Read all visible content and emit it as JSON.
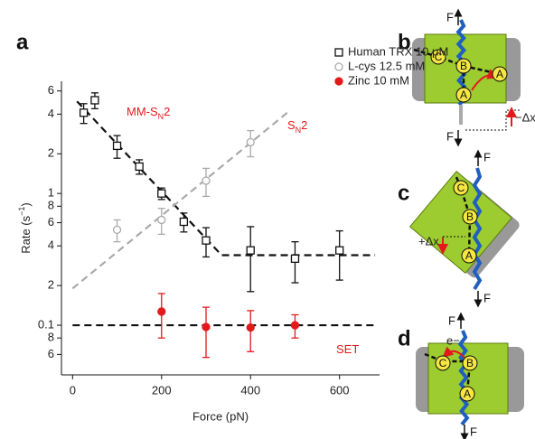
{
  "panel_labels": [
    "a",
    "b",
    "c",
    "d"
  ],
  "chart_data": {
    "type": "scatter",
    "xlabel": "Force (pN)",
    "ylabel": [
      "Rate (s",
      "−1",
      ")"
    ],
    "xlim": [
      -25,
      690
    ],
    "xticks": [
      0,
      200,
      400,
      600
    ],
    "ylim": [
      0.042,
      7.1
    ],
    "yscale": "log",
    "yticks": [
      {
        "value": 0.06,
        "label": "6"
      },
      {
        "value": 0.08,
        "label": "8"
      },
      0.1,
      {
        "value": 0.2,
        "label": "2"
      },
      {
        "value": 0.4,
        "label": "4"
      },
      {
        "value": 0.6,
        "label": "6"
      },
      {
        "value": 0.8,
        "label": "8"
      },
      1,
      2,
      4,
      6
    ],
    "legend": "upper right",
    "series": [
      {
        "name": "Human TRX 10 μM",
        "color": "#111111",
        "marker": "square",
        "x": [
          25,
          50,
          100,
          150,
          200,
          250,
          300,
          400,
          500,
          600
        ],
        "values": [
          4.1,
          5.1,
          2.3,
          1.6,
          1.0,
          0.61,
          0.44,
          0.37,
          0.32,
          0.37
        ],
        "errors": [
          0.7,
          0.7,
          0.45,
          0.2,
          0.1,
          0.1,
          0.11,
          0.19,
          0.11,
          0.15
        ]
      },
      {
        "name": "L-cys 12.5 mM",
        "color": "#aaaaaa",
        "marker": "circle",
        "x": [
          100,
          200,
          300,
          400
        ],
        "values": [
          0.53,
          0.63,
          1.25,
          2.45
        ],
        "errors": [
          0.1,
          0.14,
          0.3,
          0.55
        ]
      },
      {
        "name": "Zinc 10 mM",
        "color": "#e31a1c",
        "marker": "dot",
        "x": [
          200,
          300,
          400,
          500
        ],
        "values": [
          0.127,
          0.097,
          0.096,
          0.1
        ],
        "errors": [
          0.047,
          0.04,
          0.033,
          0.02
        ]
      }
    ],
    "fits": [
      {
        "color": "#111111",
        "x": [
          10,
          335,
          680
        ],
        "values": [
          5.0,
          0.34,
          0.34
        ]
      },
      {
        "color": "#aaaaaa",
        "x": [
          0,
          490
        ],
        "values": [
          0.19,
          4.3
        ]
      },
      {
        "color": "#111111",
        "x": [
          0,
          680
        ],
        "values": [
          0.1,
          0.1
        ]
      }
    ],
    "annotations": [
      {
        "parts": [
          "MM-S",
          "N",
          "2"
        ],
        "color": "#e31a1c"
      },
      {
        "parts": [
          "S",
          "N",
          "2"
        ],
        "color": "#e31a1c"
      },
      {
        "parts": [
          "SET"
        ],
        "color": "#e31a1c"
      }
    ]
  },
  "diagrams": {
    "b": {
      "force_top": "F",
      "force_bottom": "F",
      "sites": [
        "C",
        "B",
        "A",
        "A"
      ],
      "displacement": "−Δx"
    },
    "c": {
      "force_top": "F",
      "force_bottom": "F",
      "sites": [
        "C",
        "B",
        "A"
      ],
      "displacement": "+Δx"
    },
    "d": {
      "force_top": "F",
      "force_bottom": "F",
      "sites": [
        "C",
        "B",
        "A"
      ],
      "electron": "e−"
    }
  }
}
